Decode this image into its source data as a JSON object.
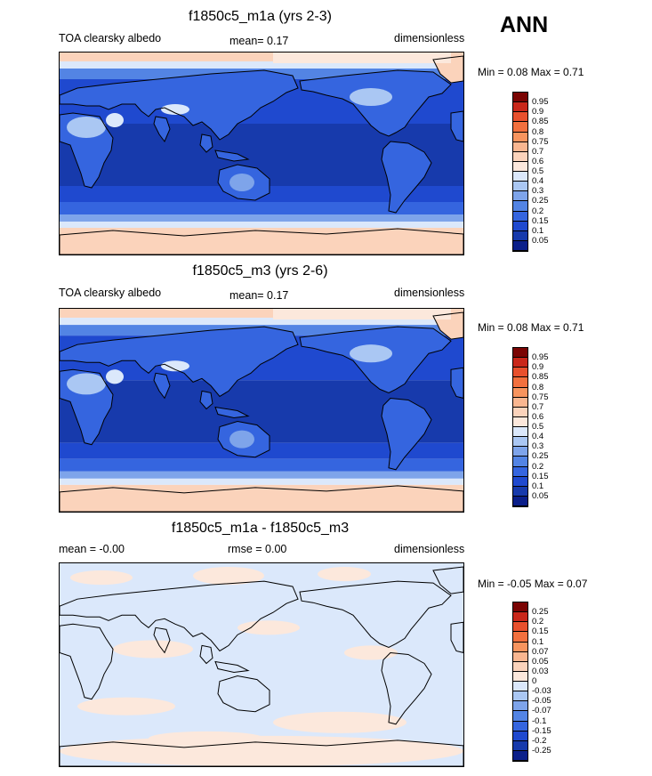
{
  "season": "ANN",
  "panels": [
    {
      "title": "f1850c5_m1a (yrs 2-3)",
      "left_label": "TOA clearsky albedo",
      "center_label": "mean=   0.17",
      "right_label": "dimensionless",
      "minmax": "Min =   0.08 Max =   0.71",
      "kind": "albedo"
    },
    {
      "title": "f1850c5_m3 (yrs 2-6)",
      "left_label": "TOA clearsky albedo",
      "center_label": "mean=   0.17",
      "right_label": "dimensionless",
      "minmax": "Min =   0.08 Max =   0.71",
      "kind": "albedo"
    },
    {
      "title": "f1850c5_m1a - f1850c5_m3",
      "left_label": "mean =  -0.00",
      "center_label": "rmse =   0.00",
      "right_label": "dimensionless",
      "minmax": "Min =  -0.05 Max =   0.07",
      "kind": "diff"
    }
  ],
  "colorbars": {
    "albedo": {
      "labels": [
        "0.95",
        "0.9",
        "0.85",
        "0.8",
        "0.75",
        "0.7",
        "0.6",
        "0.5",
        "0.4",
        "0.3",
        "0.25",
        "0.2",
        "0.15",
        "0.1",
        "0.05"
      ],
      "colors": [
        "#7a0403",
        "#c9271a",
        "#e8502d",
        "#f2703e",
        "#f7945e",
        "#f9b690",
        "#fbd3bb",
        "#fce8dc",
        "#dbe8fb",
        "#aac7f3",
        "#7ea4ea",
        "#5384e4",
        "#3565df",
        "#1f49cf",
        "#173aac",
        "#0b1f8a"
      ]
    },
    "diff": {
      "labels": [
        "0.25",
        "0.2",
        "0.15",
        "0.1",
        "0.07",
        "0.05",
        "0.03",
        "0",
        "-0.03",
        "-0.05",
        "-0.07",
        "-0.1",
        "-0.15",
        "-0.2",
        "-0.25"
      ],
      "colors": [
        "#7a0403",
        "#c9271a",
        "#e8502d",
        "#f2703e",
        "#f7945e",
        "#f9b690",
        "#fbd3bb",
        "#fce8dc",
        "#dbe8fb",
        "#aac7f3",
        "#7ea4ea",
        "#5384e4",
        "#3565df",
        "#1f49cf",
        "#173aac",
        "#0b1f8a"
      ]
    }
  },
  "chart_data": [
    {
      "type": "heatmap",
      "title": "f1850c5_m1a (yrs 2-3)",
      "variable": "TOA clearsky albedo",
      "units": "dimensionless",
      "mean": 0.17,
      "min": 0.08,
      "max": 0.71,
      "projection": "cylindrical equidistant, centered on Pacific",
      "contour_levels": [
        0.05,
        0.1,
        0.15,
        0.2,
        0.25,
        0.3,
        0.4,
        0.5,
        0.6,
        0.7,
        0.75,
        0.8,
        0.85,
        0.9,
        0.95
      ]
    },
    {
      "type": "heatmap",
      "title": "f1850c5_m3 (yrs 2-6)",
      "variable": "TOA clearsky albedo",
      "units": "dimensionless",
      "mean": 0.17,
      "min": 0.08,
      "max": 0.71,
      "projection": "cylindrical equidistant, centered on Pacific",
      "contour_levels": [
        0.05,
        0.1,
        0.15,
        0.2,
        0.25,
        0.3,
        0.4,
        0.5,
        0.6,
        0.7,
        0.75,
        0.8,
        0.85,
        0.9,
        0.95
      ]
    },
    {
      "type": "heatmap",
      "title": "f1850c5_m1a - f1850c5_m3",
      "units": "dimensionless",
      "mean": -0.0,
      "rmse": 0.0,
      "min": -0.05,
      "max": 0.07,
      "contour_levels": [
        -0.25,
        -0.2,
        -0.15,
        -0.1,
        -0.07,
        -0.05,
        -0.03,
        0,
        0.03,
        0.05,
        0.07,
        0.1,
        0.15,
        0.2,
        0.25
      ]
    }
  ]
}
